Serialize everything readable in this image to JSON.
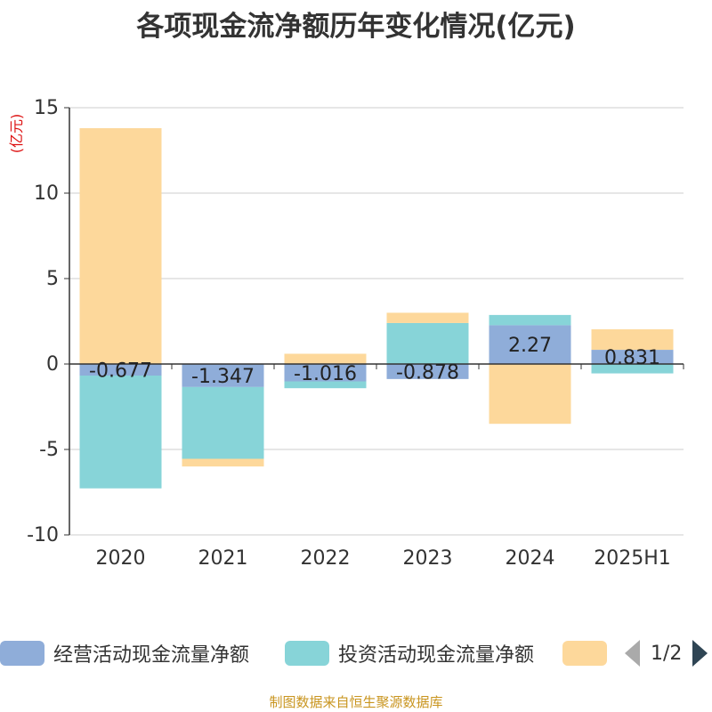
{
  "title": "各项现金流净额历年变化情况(亿元)",
  "unit_label": "(亿元)",
  "source": "制图数据来自恒生聚源数据库",
  "legend": {
    "items": [
      {
        "label": "经营活动现金流量净额",
        "color": "#8fadd9"
      },
      {
        "label": "投资活动现金流量净额",
        "color": "#87d4d8"
      },
      {
        "label": "",
        "color": "#fdd89b"
      }
    ],
    "page": "1/2"
  },
  "chart_data": {
    "type": "bar",
    "stacked": true,
    "title": "各项现金流净额历年变化情况(亿元)",
    "ylabel": "(亿元)",
    "xlabel": "",
    "ylim": [
      -10,
      15
    ],
    "yticks": [
      15,
      10,
      5,
      0,
      -5,
      -10
    ],
    "grid": true,
    "legend_position": "bottom",
    "categories": [
      "2020",
      "2021",
      "2022",
      "2023",
      "2024",
      "2025H1"
    ],
    "series": [
      {
        "name": "经营活动现金流量净额",
        "color": "#8fadd9",
        "values": [
          -0.677,
          -1.347,
          -1.016,
          -0.878,
          2.27,
          0.831
        ],
        "labels": [
          "-0.677",
          "-1.347",
          "-1.016",
          "-0.878",
          "2.27",
          "0.831"
        ]
      },
      {
        "name": "投资活动现金流量净额",
        "color": "#87d4d8",
        "values": [
          -6.6,
          -4.2,
          -0.4,
          2.4,
          0.6,
          -0.55
        ]
      },
      {
        "color": "#fdd89b",
        "values": [
          13.8,
          -0.45,
          0.6,
          0.6,
          -3.5,
          1.2
        ]
      }
    ]
  }
}
